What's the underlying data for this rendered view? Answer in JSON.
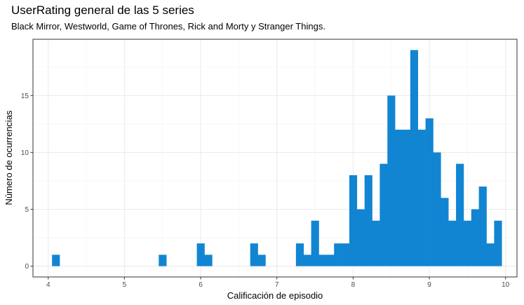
{
  "chart_data": {
    "type": "bar",
    "title": "UserRating general de las 5 series",
    "subtitle": "Black Mirror, Westworld, Game of Thrones, Rick and Morty y Stranger Things.",
    "xlabel": "Calificación de episodio",
    "ylabel": "Número de ocurrencias",
    "xlim": [
      3.8,
      10.15
    ],
    "ylim": [
      -0.95,
      19.95
    ],
    "x_ticks": [
      4,
      5,
      6,
      7,
      8,
      9,
      10
    ],
    "y_ticks": [
      0,
      5,
      10,
      15
    ],
    "grid": true,
    "bin_width": 0.1,
    "bar_color": "#1185D2",
    "bins": [
      {
        "x0": 4.05,
        "x1": 4.15,
        "count": 1
      },
      {
        "x0": 5.45,
        "x1": 5.55,
        "count": 1
      },
      {
        "x0": 5.95,
        "x1": 6.05,
        "count": 2
      },
      {
        "x0": 6.05,
        "x1": 6.15,
        "count": 1
      },
      {
        "x0": 6.65,
        "x1": 6.75,
        "count": 2
      },
      {
        "x0": 6.75,
        "x1": 6.85,
        "count": 1
      },
      {
        "x0": 7.25,
        "x1": 7.35,
        "count": 2
      },
      {
        "x0": 7.35,
        "x1": 7.45,
        "count": 1
      },
      {
        "x0": 7.45,
        "x1": 7.55,
        "count": 4
      },
      {
        "x0": 7.55,
        "x1": 7.65,
        "count": 1
      },
      {
        "x0": 7.65,
        "x1": 7.75,
        "count": 1
      },
      {
        "x0": 7.75,
        "x1": 7.85,
        "count": 2
      },
      {
        "x0": 7.85,
        "x1": 7.95,
        "count": 2
      },
      {
        "x0": 7.95,
        "x1": 8.05,
        "count": 8
      },
      {
        "x0": 8.05,
        "x1": 8.15,
        "count": 5
      },
      {
        "x0": 8.15,
        "x1": 8.25,
        "count": 8
      },
      {
        "x0": 8.25,
        "x1": 8.35,
        "count": 4
      },
      {
        "x0": 8.35,
        "x1": 8.45,
        "count": 9
      },
      {
        "x0": 8.45,
        "x1": 8.55,
        "count": 15
      },
      {
        "x0": 8.55,
        "x1": 8.65,
        "count": 12
      },
      {
        "x0": 8.65,
        "x1": 8.75,
        "count": 12
      },
      {
        "x0": 8.75,
        "x1": 8.85,
        "count": 19
      },
      {
        "x0": 8.85,
        "x1": 8.95,
        "count": 12
      },
      {
        "x0": 8.95,
        "x1": 9.05,
        "count": 13
      },
      {
        "x0": 9.05,
        "x1": 9.15,
        "count": 10
      },
      {
        "x0": 9.15,
        "x1": 9.25,
        "count": 6
      },
      {
        "x0": 9.25,
        "x1": 9.35,
        "count": 4
      },
      {
        "x0": 9.35,
        "x1": 9.45,
        "count": 9
      },
      {
        "x0": 9.45,
        "x1": 9.55,
        "count": 4
      },
      {
        "x0": 9.55,
        "x1": 9.65,
        "count": 5
      },
      {
        "x0": 9.65,
        "x1": 9.75,
        "count": 7
      },
      {
        "x0": 9.75,
        "x1": 9.85,
        "count": 2
      },
      {
        "x0": 9.85,
        "x1": 9.95,
        "count": 4
      }
    ]
  }
}
